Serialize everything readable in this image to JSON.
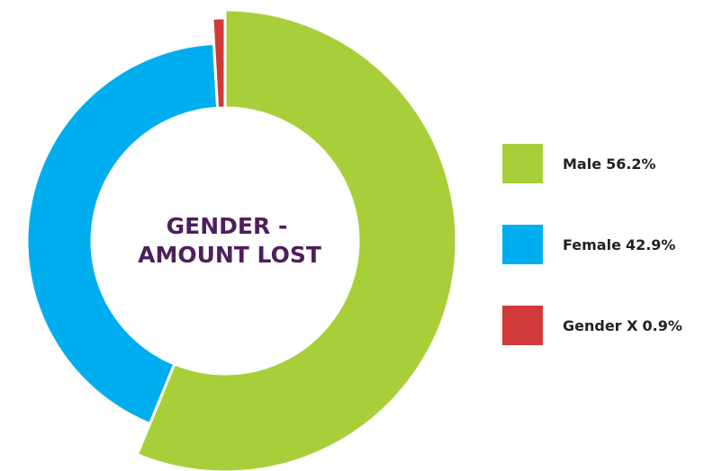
{
  "chart_data": {
    "type": "donut",
    "title": [
      "GENDER -",
      "AMOUNT LOST"
    ],
    "categories": [
      "Male",
      "Female",
      "Gender X"
    ],
    "values": [
      56.2,
      42.9,
      0.9
    ],
    "value_labels": [
      "56.2%",
      "42.9%",
      "0.9%"
    ],
    "colors": [
      "#a8cf3a",
      "#00aeef",
      "#d0393a"
    ],
    "legend": "right"
  }
}
